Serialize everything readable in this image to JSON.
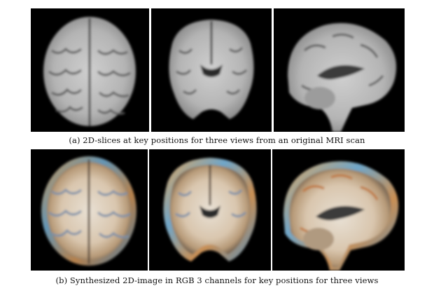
{
  "figure": {
    "row_a": {
      "caption": "(a) 2D-slices at key positions for three views from an original MRI scan",
      "views": [
        "axial",
        "coronal",
        "sagittal"
      ],
      "style": "grayscale"
    },
    "row_b": {
      "caption": "(b) Synthesized 2D-image in RGB 3 channels for key positions for three views",
      "views": [
        "axial",
        "coronal",
        "sagittal"
      ],
      "style": "rgb"
    }
  }
}
